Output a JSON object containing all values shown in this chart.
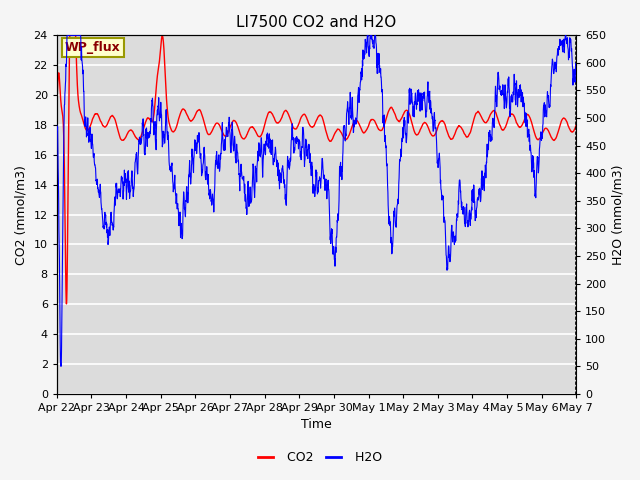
{
  "title": "LI7500 CO2 and H2O",
  "xlabel": "Time",
  "ylabel_left": "CO2 (mmol/m3)",
  "ylabel_right": "H2O (mmol/m3)",
  "annotation": "WP_flux",
  "ylim_left": [
    0,
    24
  ],
  "ylim_right": [
    0,
    650
  ],
  "yticks_left": [
    0,
    2,
    4,
    6,
    8,
    10,
    12,
    14,
    16,
    18,
    20,
    22,
    24
  ],
  "yticks_right": [
    0,
    50,
    100,
    150,
    200,
    250,
    300,
    350,
    400,
    450,
    500,
    550,
    600,
    650
  ],
  "x_tick_labels": [
    "Apr 22",
    "Apr 23",
    "Apr 24",
    "Apr 25",
    "Apr 26",
    "Apr 27",
    "Apr 28",
    "Apr 29",
    "Apr 30",
    "May 1",
    "May 2",
    "May 3",
    "May 4",
    "May 5",
    "May 6",
    "May 7"
  ],
  "plot_bg_color": "#dcdcdc",
  "fig_bg_color": "#f5f5f5",
  "grid_color": "#ffffff",
  "co2_color": "red",
  "h2o_color": "blue",
  "title_fontsize": 11,
  "axis_label_fontsize": 9,
  "tick_fontsize": 8
}
